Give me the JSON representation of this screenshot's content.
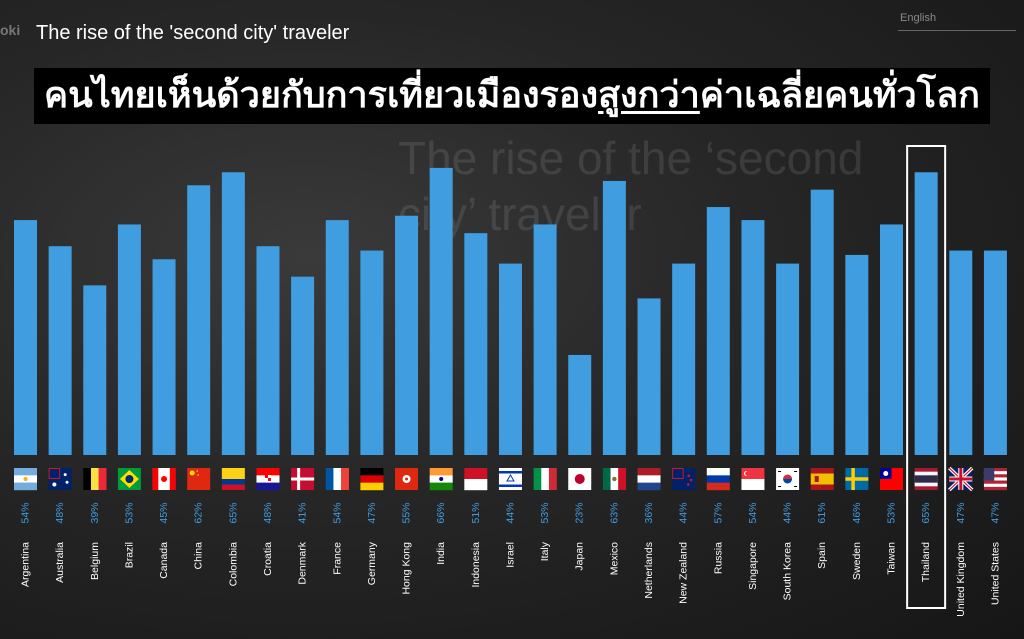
{
  "header": {
    "logo_fragment": "oki",
    "subtitle": "The rise of the 'second city' traveler",
    "title_before": "คนไทยเห็นด้วยกับการเที่ยวเมืองรอง",
    "title_underlined": "สูงกว่า",
    "title_after": "ค่าเฉลี่ยคนทั่วโลก",
    "language": "English"
  },
  "background": {
    "heading": "The rise of the ‘second city’ traveler"
  },
  "colors": {
    "bar": "#3f9de0",
    "highlight_border": "#ffffff",
    "value_label": "#3f9de0",
    "country_label": "#ffffff"
  },
  "chart_data": {
    "type": "bar",
    "categories": [
      "Argentina",
      "Australia",
      "Belgium",
      "Brazil",
      "Canada",
      "China",
      "Colombia",
      "Croatia",
      "Denmark",
      "France",
      "Germany",
      "Hong Kong",
      "India",
      "Indonesia",
      "Israel",
      "Italy",
      "Japan",
      "Mexico",
      "Netherlands",
      "New Zealand",
      "Russia",
      "Singapore",
      "South Korea",
      "Spain",
      "Sweden",
      "Taiwan",
      "Thailand",
      "United Kingdom",
      "United States"
    ],
    "values": [
      54,
      48,
      39,
      53,
      45,
      62,
      65,
      48,
      41,
      54,
      47,
      55,
      66,
      51,
      44,
      53,
      23,
      63,
      36,
      44,
      57,
      54,
      44,
      61,
      46,
      53,
      65,
      47,
      47
    ],
    "value_labels": [
      "54%",
      "48%",
      "39%",
      "53%",
      "45%",
      "62%",
      "65%",
      "48%",
      "41%",
      "54%",
      "47%",
      "55%",
      "66%",
      "51%",
      "44%",
      "53%",
      "23%",
      "63%",
      "36%",
      "44%",
      "57%",
      "54%",
      "44%",
      "61%",
      "46%",
      "53%",
      "65%",
      "47%",
      "47%"
    ],
    "highlight": "Thailand",
    "title": "",
    "xlabel": "",
    "ylabel": "",
    "grid": false,
    "legend": false
  }
}
